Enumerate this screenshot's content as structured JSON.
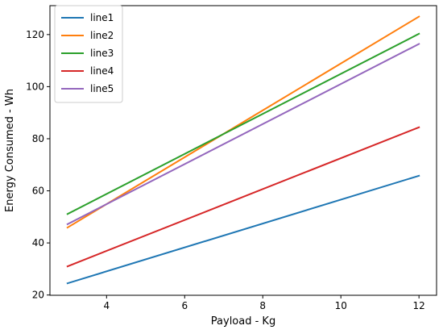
{
  "chart_data": {
    "type": "line",
    "title": "",
    "xlabel": "Payload - Kg",
    "ylabel": "Energy Consumed - Wh",
    "xlim": [
      2.55,
      12.45
    ],
    "ylim": [
      19.9,
      131.1
    ],
    "xticks": [
      4,
      6,
      8,
      10,
      12
    ],
    "yticks": [
      20,
      40,
      60,
      80,
      100,
      120
    ],
    "grid": false,
    "legend_position": "top-left",
    "x": [
      3,
      12
    ],
    "series": [
      {
        "name": "line1",
        "color": "#1f77b4",
        "values": [
          24.5,
          65.8
        ]
      },
      {
        "name": "line2",
        "color": "#ff7f0e",
        "values": [
          45.9,
          126.9
        ]
      },
      {
        "name": "line3",
        "color": "#2ca02c",
        "values": [
          51.1,
          120.3
        ]
      },
      {
        "name": "line4",
        "color": "#d62728",
        "values": [
          31.0,
          84.4
        ]
      },
      {
        "name": "line5",
        "color": "#9467bd",
        "values": [
          47.2,
          116.4
        ]
      }
    ]
  }
}
